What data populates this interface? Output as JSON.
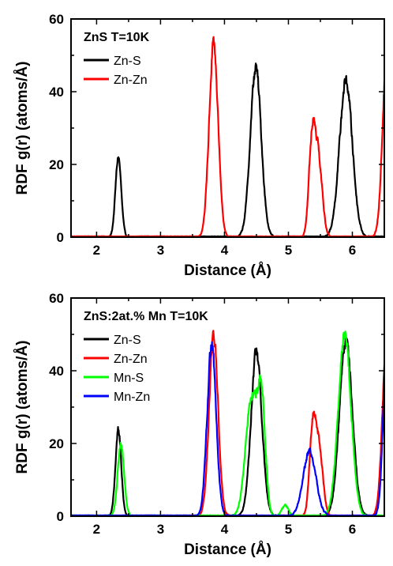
{
  "chart_data": [
    {
      "type": "line",
      "title": "ZnS T=10K",
      "xlabel": "Distance (Å)",
      "ylabel": "RDF g(r) (atoms/Å)",
      "xlim": [
        1.6,
        6.5
      ],
      "ylim": [
        0,
        60
      ],
      "xticks": [
        2,
        3,
        4,
        5,
        6
      ],
      "yticks": [
        0,
        20,
        40,
        60
      ],
      "legend": "top-left",
      "grid": false,
      "series": [
        {
          "name": "Zn-S",
          "color": "#000000",
          "peaks": [
            [
              2.34,
              22,
              0.045
            ],
            [
              4.49,
              46.5,
              0.085
            ],
            [
              5.9,
              43,
              0.1
            ]
          ]
        },
        {
          "name": "Zn-Zn",
          "color": "#ff0000",
          "peaks": [
            [
              3.83,
              53,
              0.07
            ],
            [
              5.37,
              26,
              0.05
            ],
            [
              5.47,
              21,
              0.06
            ],
            [
              6.55,
              55,
              0.07
            ]
          ]
        }
      ]
    },
    {
      "type": "line",
      "title": "ZnS:2at.% Mn T=10K",
      "xlabel": "Distance (Å)",
      "ylabel": "RDF g(r) (atoms/Å)",
      "xlim": [
        1.6,
        6.5
      ],
      "ylim": [
        0,
        60
      ],
      "xticks": [
        2,
        3,
        4,
        5,
        6
      ],
      "yticks": [
        0,
        20,
        40,
        60
      ],
      "legend": "top-left",
      "grid": false,
      "series": [
        {
          "name": "Zn-S",
          "color": "#000000",
          "peaks": [
            [
              2.34,
              24,
              0.045
            ],
            [
              4.5,
              45,
              0.085
            ],
            [
              5.9,
              48,
              0.1
            ]
          ]
        },
        {
          "name": "Zn-Zn",
          "color": "#ff0000",
          "peaks": [
            [
              3.83,
              50,
              0.07
            ],
            [
              5.38,
              23,
              0.05
            ],
            [
              5.48,
              18,
              0.06
            ],
            [
              6.55,
              55,
              0.07
            ]
          ]
        },
        {
          "name": "Mn-S",
          "color": "#00ff00",
          "peaks": [
            [
              2.38,
              20,
              0.05
            ],
            [
              4.42,
              32,
              0.09
            ],
            [
              4.58,
              30,
              0.06
            ],
            [
              5.88,
              50,
              0.1
            ],
            [
              4.95,
              3,
              0.05
            ]
          ]
        },
        {
          "name": "Mn-Zn",
          "color": "#0000ff",
          "peaks": [
            [
              3.8,
              47,
              0.07
            ],
            [
              5.33,
              18,
              0.1
            ],
            [
              6.55,
              55,
              0.06
            ]
          ]
        }
      ]
    }
  ]
}
